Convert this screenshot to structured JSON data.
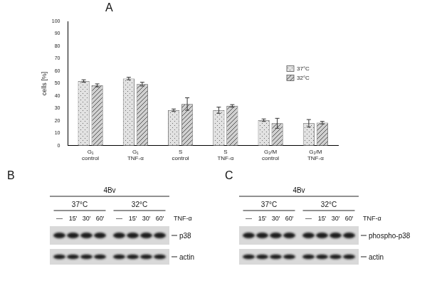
{
  "chart_data": {
    "type": "bar",
    "categories": [
      [
        "G₁",
        "control"
      ],
      [
        "G₁",
        "TNF-α"
      ],
      [
        "S",
        "control"
      ],
      [
        "S",
        "TNF-α"
      ],
      [
        "G₂/M",
        "control"
      ],
      [
        "G₂/M",
        "TNF-α"
      ]
    ],
    "series": [
      {
        "name": "37°C",
        "color": "#e2e2e2",
        "values": [
          52,
          54,
          28.5,
          28.5,
          20.5,
          18
        ],
        "errors": [
          1,
          1,
          1,
          2.5,
          1,
          3
        ]
      },
      {
        "name": "32°C",
        "color": "#d0d0d0",
        "values": [
          48.5,
          49.5,
          33.5,
          32,
          18,
          18.5
        ],
        "errors": [
          1.2,
          1.5,
          5,
          1,
          4,
          1
        ]
      }
    ],
    "y_label": "cells [%]",
    "ylim": [
      0,
      100
    ],
    "yticks": [
      0,
      10,
      20,
      30,
      40,
      50,
      60,
      70,
      80,
      90,
      100
    ],
    "grid": false,
    "legend": "right"
  },
  "panel_labels": [
    "A",
    "B",
    "C"
  ],
  "blots": [
    {
      "cell_line": "4Bv",
      "temperatures": [
        "37°C",
        "32°C"
      ],
      "lanes": [
        "—",
        "15'",
        "30'",
        "60'"
      ],
      "treatment": "TNF-α",
      "rows": [
        "p38",
        "actin"
      ]
    },
    {
      "cell_line": "4Bv",
      "temperatures": [
        "37°C",
        "32°C"
      ],
      "lanes": [
        "—",
        "15'",
        "30'",
        "60'"
      ],
      "treatment": "TNF-α",
      "rows": [
        "phospho-p38",
        "actin"
      ]
    }
  ]
}
